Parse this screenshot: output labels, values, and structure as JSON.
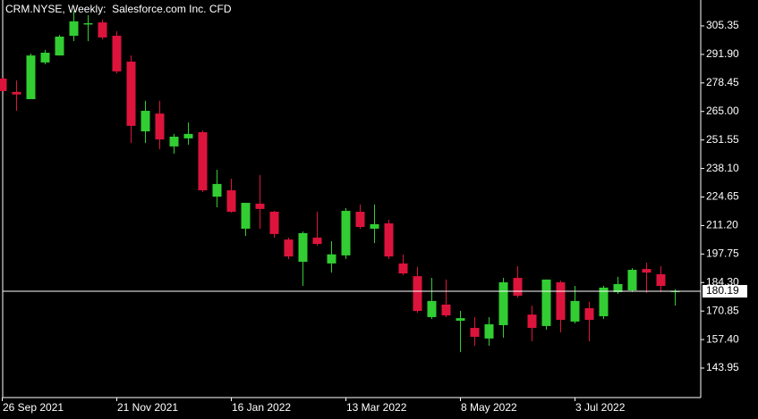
{
  "chart_data": {
    "type": "candlestick",
    "title": "CRM.NYSE, Weekly:  Salesforce.com Inc. CFD",
    "categories": [
      "26 Sep 2021",
      null,
      null,
      null,
      null,
      null,
      null,
      null,
      "21 Nov 2021",
      null,
      null,
      null,
      null,
      null,
      null,
      null,
      "16 Jan 2022",
      null,
      null,
      null,
      null,
      null,
      null,
      null,
      "13 Mar 2022",
      null,
      null,
      null,
      null,
      null,
      null,
      null,
      "8 May 2022",
      null,
      null,
      null,
      null,
      null,
      null,
      null,
      "3 Jul 2022",
      null,
      null,
      null,
      null,
      null,
      null,
      null
    ],
    "open": [
      280.5,
      274.2,
      270.8,
      288.1,
      291.4,
      300.7,
      306.0,
      307.0,
      300.7,
      288.5,
      255.6,
      264.0,
      248.5,
      252.3,
      255.2,
      224.8,
      227.8,
      209.7,
      221.5,
      217.7,
      204.6,
      194.1,
      205.5,
      193.3,
      197.1,
      217.7,
      209.7,
      212.2,
      193.3,
      187.3,
      168.0,
      173.9,
      166.3,
      162.9,
      157.9,
      164.2,
      186.5,
      169.2,
      163.8,
      184.4,
      165.9,
      172.2,
      168.4,
      179.8,
      180.6,
      190.7,
      188.2,
      180.0
    ],
    "high": [
      281.0,
      279.6,
      292.3,
      294.0,
      301.1,
      312.5,
      310.4,
      308.3,
      302.8,
      291.4,
      270.0,
      270.0,
      254.4,
      259.8,
      256.0,
      237.5,
      233.3,
      221.9,
      235.0,
      218.1,
      205.5,
      208.4,
      217.7,
      203.8,
      219.4,
      221.1,
      221.1,
      213.9,
      197.5,
      191.6,
      186.5,
      185.7,
      170.9,
      168.0,
      168.0,
      186.5,
      192.0,
      173.4,
      185.7,
      185.2,
      182.7,
      175.2,
      182.7,
      187.0,
      191.1,
      193.7,
      192.0,
      181.1
    ],
    "low": [
      274.6,
      265.3,
      270.8,
      287.2,
      291.4,
      298.2,
      298.2,
      299.0,
      283.0,
      250.1,
      250.1,
      247.2,
      245.1,
      249.3,
      227.0,
      219.8,
      217.3,
      206.3,
      209.7,
      205.5,
      195.3,
      182.7,
      201.7,
      189.0,
      195.4,
      209.7,
      202.9,
      195.4,
      187.8,
      170.1,
      167.1,
      167.9,
      151.5,
      154.5,
      154.5,
      158.3,
      177.2,
      156.6,
      162.1,
      160.8,
      165.0,
      156.6,
      167.1,
      179.0,
      179.8,
      179.4,
      179.8,
      173.4
    ],
    "close": [
      274.6,
      273.0,
      291.4,
      292.7,
      300.3,
      307.5,
      306.6,
      299.9,
      283.9,
      258.2,
      265.3,
      251.8,
      253.1,
      254.4,
      227.8,
      230.8,
      217.7,
      221.9,
      219.0,
      207.2,
      196.6,
      207.6,
      202.5,
      197.6,
      218.1,
      210.5,
      211.8,
      196.6,
      188.6,
      170.9,
      175.6,
      168.8,
      167.5,
      158.7,
      164.6,
      184.4,
      178.1,
      162.9,
      185.7,
      166.7,
      175.6,
      166.7,
      181.9,
      183.6,
      190.3,
      189.0,
      182.7,
      180.19
    ],
    "up_color": "#32cd32",
    "down_color": "#dc143c",
    "last_price": 180.19,
    "ylim": [
      130.05,
      316.3
    ],
    "yticks": [
      305.35,
      {
        "value": 291.9,
        "label": "291.90"
      },
      278.45,
      {
        "value": 265,
        "label": "265.00"
      },
      251.55,
      {
        "value": 238.1,
        "label": "238.10"
      },
      224.65,
      {
        "value": 211.2,
        "label": "211.20"
      },
      197.75,
      {
        "value": 184.3,
        "label": "184.30"
      },
      170.85,
      {
        "value": 157.4,
        "label": "157.40"
      },
      143.95
    ]
  }
}
